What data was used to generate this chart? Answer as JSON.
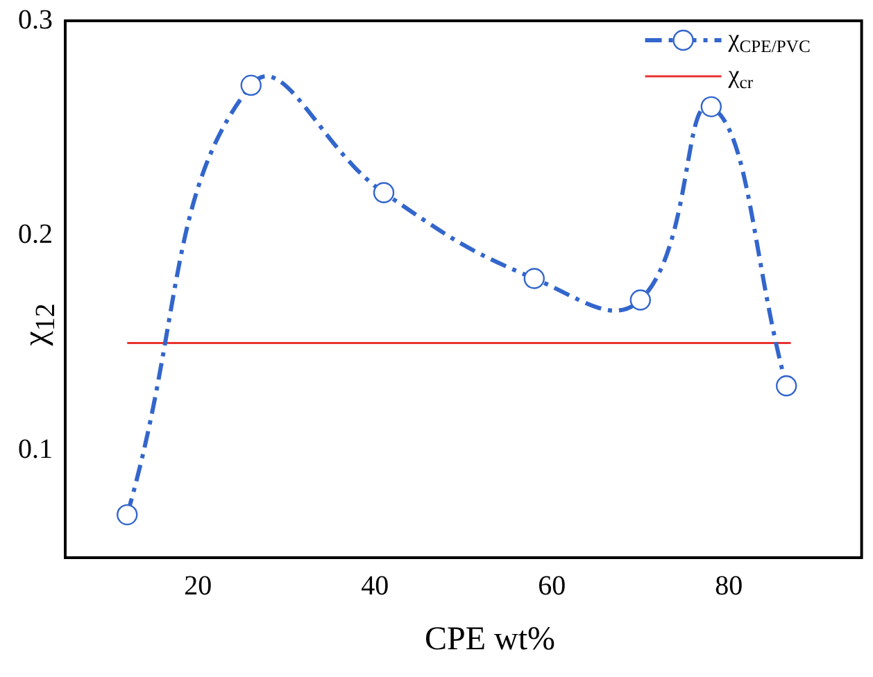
{
  "chart_data": {
    "type": "line",
    "xlabel": "CPE wt%",
    "ylabel": "χ$_{12}$",
    "xlim": [
      5,
      95
    ],
    "xticks": [
      20,
      40,
      60,
      80
    ],
    "ylim": [
      0.05,
      0.3
    ],
    "yticks": [
      0.1,
      0.2,
      0.3
    ],
    "grid": false,
    "legend": "top right",
    "series": [
      {
        "name": "χ$_{CPE/PVC}$",
        "color": "#3366cc",
        "x": [
          12,
          26,
          41,
          58,
          70,
          78,
          86.5
        ],
        "values": [
          0.07,
          0.27,
          0.22,
          0.18,
          0.17,
          0.26,
          0.13
        ],
        "marker": "circle",
        "line_style": "dashdot"
      },
      {
        "name": "χ$_{cr}$",
        "color": "#e8332f",
        "x": [
          12,
          87
        ],
        "values": [
          0.15,
          0.15
        ],
        "marker": "none",
        "line_style": "solid"
      }
    ]
  }
}
